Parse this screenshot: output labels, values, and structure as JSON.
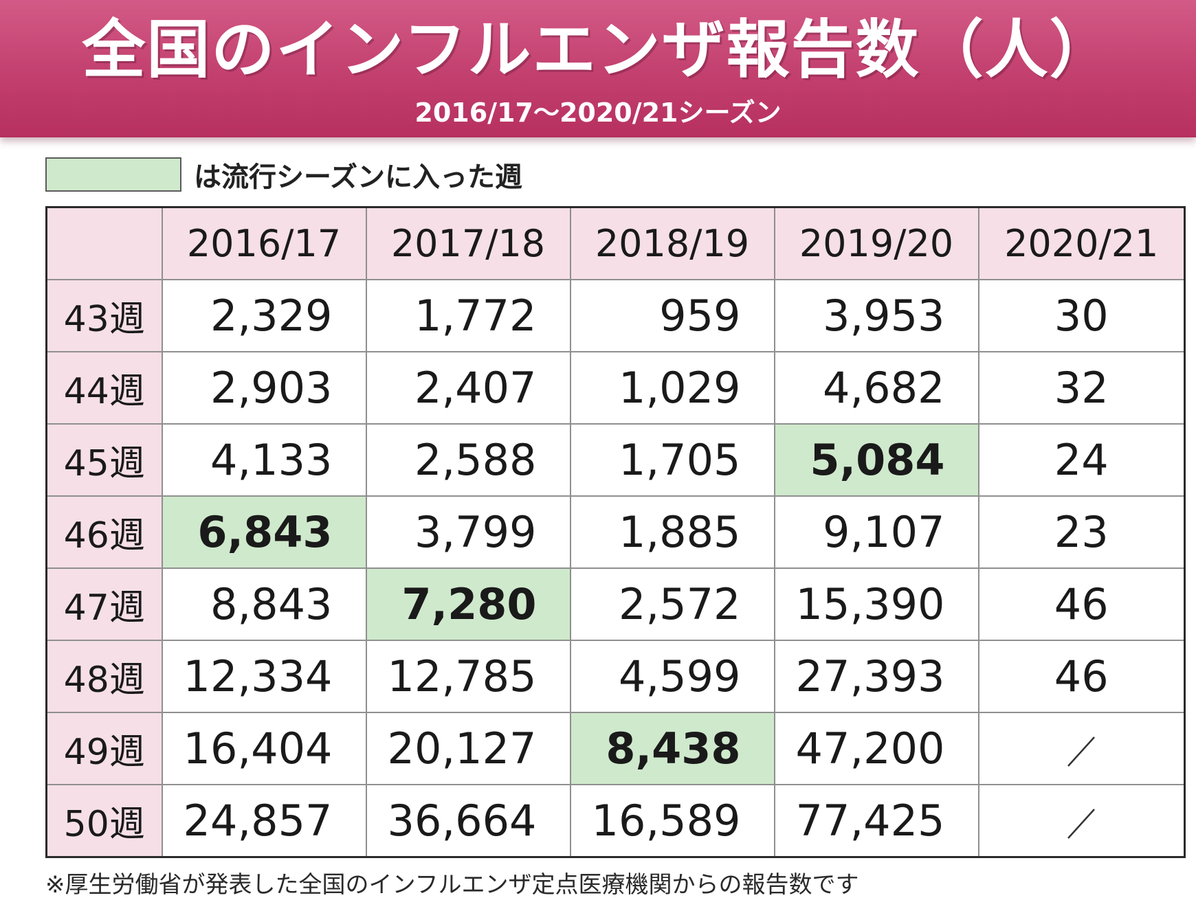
{
  "banner": {
    "title": "全国のインフルエンザ報告数（人）",
    "subtitle": "2016/17〜2020/21シーズン"
  },
  "legend": {
    "label": "は流行シーズンに入った週",
    "swatch_color": "#cfe9cc"
  },
  "chart_data": {
    "type": "table",
    "title": "全国のインフルエンザ報告数（人）",
    "subtitle": "2016/17〜2020/21シーズン",
    "columns": [
      "2016/17",
      "2017/18",
      "2018/19",
      "2019/20",
      "2020/21"
    ],
    "rows": [
      {
        "week": "43週",
        "values": [
          "2,329",
          "1,772",
          "959",
          "3,953",
          "30"
        ]
      },
      {
        "week": "44週",
        "values": [
          "2,903",
          "2,407",
          "1,029",
          "4,682",
          "32"
        ]
      },
      {
        "week": "45週",
        "values": [
          "4,133",
          "2,588",
          "1,705",
          "5,084",
          "24"
        ]
      },
      {
        "week": "46週",
        "values": [
          "6,843",
          "3,799",
          "1,885",
          "9,107",
          "23"
        ]
      },
      {
        "week": "47週",
        "values": [
          "8,843",
          "7,280",
          "2,572",
          "15,390",
          "46"
        ]
      },
      {
        "week": "48週",
        "values": [
          "12,334",
          "12,785",
          "4,599",
          "27,393",
          "46"
        ]
      },
      {
        "week": "49週",
        "values": [
          "16,404",
          "20,127",
          "8,438",
          "47,200",
          null
        ]
      },
      {
        "week": "50週",
        "values": [
          "24,857",
          "36,664",
          "16,589",
          "77,425",
          null
        ]
      }
    ],
    "epidemic_onset": [
      {
        "column": "2016/17",
        "week": "46週"
      },
      {
        "column": "2017/18",
        "week": "47週"
      },
      {
        "column": "2018/19",
        "week": "49週"
      },
      {
        "column": "2019/20",
        "week": "45週"
      }
    ],
    "colors": {
      "header_bg": "#f6dfe7",
      "onset_bg": "#cfe9cc",
      "banner": "#c23f6e"
    }
  },
  "footnote": "※厚生労働省が発表した全国のインフルエンザ定点医療機関からの報告数です"
}
